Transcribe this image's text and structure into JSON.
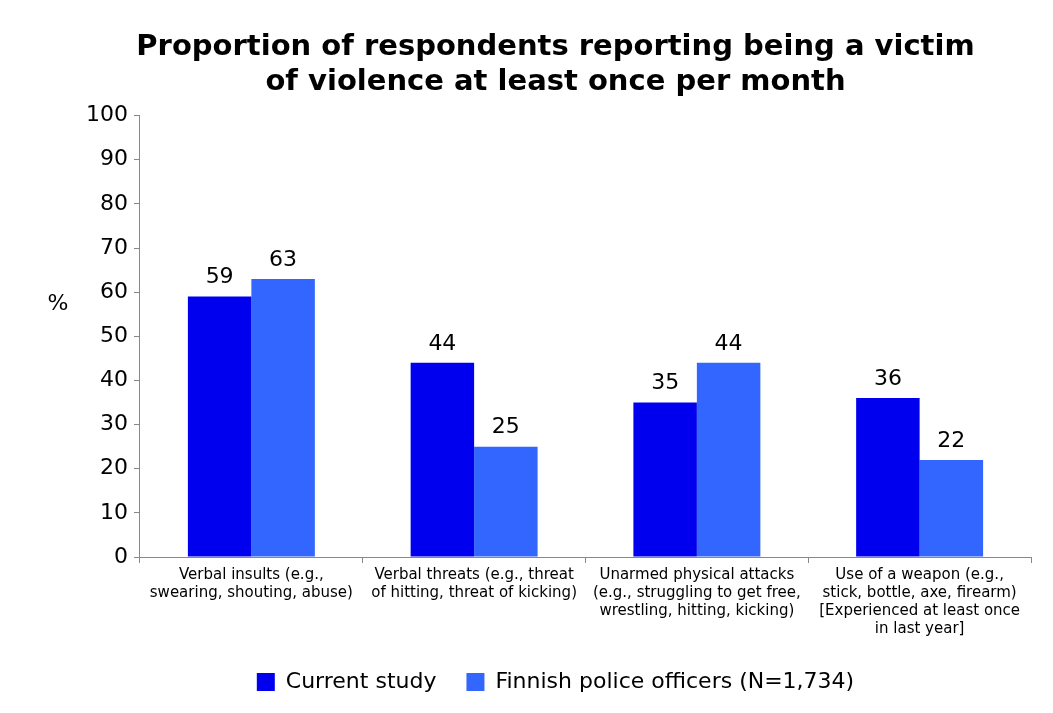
{
  "chart_data": {
    "type": "bar",
    "title": "Proportion of respondents reporting being a victim of violence at least once per month",
    "ylabel": "%",
    "categories": [
      "Verbal insults (e.g., swearing, shouting, abuse)",
      "Verbal threats (e.g., threat of hitting, threat of kicking)",
      "Unarmed physical attacks (e.g., struggling to get free, wrestling, hitting, kicking)",
      "Use of a weapon (e.g., stick, bottle, axe, firearm) [Experienced at least once in last year]"
    ],
    "series": [
      {
        "name": "Current study",
        "color": "#0000ee",
        "values": [
          59,
          44,
          35,
          36
        ]
      },
      {
        "name": "Finnish police officers (N=1,734)",
        "color": "#3366ff",
        "values": [
          63,
          25,
          44,
          22
        ]
      }
    ],
    "ylim": [
      0,
      100
    ],
    "yticks": [
      0,
      10,
      20,
      30,
      40,
      50,
      60,
      70,
      80,
      90,
      100
    ],
    "data_labels": true,
    "legend": "bottom",
    "grid": false
  }
}
